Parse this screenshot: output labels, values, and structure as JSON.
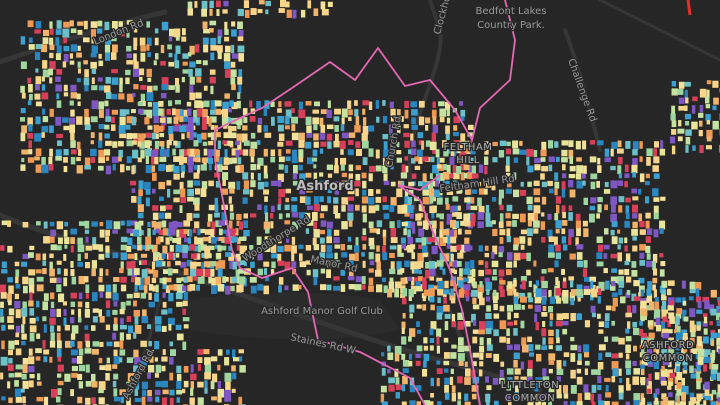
{
  "map": {
    "labels": {
      "bedfont": "Bedfont Lakes",
      "country_park": "Country Park.",
      "clockhouse": "Clockhouse La",
      "london_rd": "London Rd",
      "challenge_rd": "Challenge Rd",
      "ashford": "Ashford",
      "feltham": "FELTHAM",
      "hill": "HILL",
      "feltham_hill_rd": "Feltham Hill Rd",
      "manor_rd": "Manor Rd",
      "woodthorpe_rd": "Woodthorpe Rd",
      "golf": "Ashford Manor Golf Club",
      "staines": "Staines Rd W",
      "church_rd": "Church Rd",
      "ashford_rd": "Ashford Rd",
      "littleton": "LITTLETON",
      "littleton_common": "COMMON",
      "ashford_common_a": "ASHFORD",
      "ashford_common_b": "COMMON"
    }
  }
}
